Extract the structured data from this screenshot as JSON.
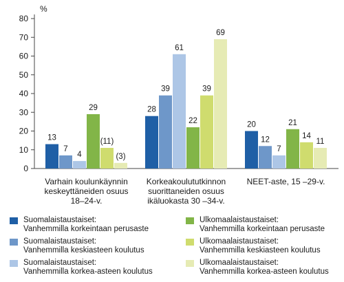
{
  "chart_data": {
    "type": "bar",
    "unit": "%",
    "ylim": [
      0,
      80
    ],
    "yticks": [
      0,
      10,
      20,
      30,
      40,
      50,
      60,
      70,
      80
    ],
    "grid": false,
    "legend_position": "bottom",
    "categories": [
      [
        "Varhain koulunkäynnin",
        "keskeyttäneiden osuus",
        "18–24-v."
      ],
      [
        "Korkeakoulututkinnon",
        "suorittaneiden osuus",
        "ikäluokasta 30 –34-v."
      ],
      [
        "NEET-aste, 15 –29-v."
      ]
    ],
    "series": [
      {
        "name": [
          "Suomalaistaustaiset:",
          "Vanhemmilla korkeintaan perusaste"
        ],
        "color": "#1f5fa6",
        "values": [
          13,
          28,
          20
        ],
        "labels": [
          "13",
          "28",
          "20"
        ]
      },
      {
        "name": [
          "Suomalaistaustaiset:",
          "Vanhemmilla keskiasteen koulutus"
        ],
        "color": "#6e97c9",
        "values": [
          7,
          39,
          12
        ],
        "labels": [
          "7",
          "39",
          "12"
        ]
      },
      {
        "name": [
          "Suomalaistaustaiset:",
          "Vanhemmilla korkea-asteen koulutus"
        ],
        "color": "#adc6e6",
        "values": [
          4,
          61,
          7
        ],
        "labels": [
          "4",
          "61",
          "7"
        ]
      },
      {
        "name": [
          "Ulkomaalaistaustaiset:",
          "Vanhemmilla korkeintaan perusaste"
        ],
        "color": "#82b548",
        "values": [
          29,
          22,
          21
        ],
        "labels": [
          "29",
          "22",
          "21"
        ]
      },
      {
        "name": [
          "Ulkomaalaistaustaiset:",
          "Vanhemmilla keskiasteen koulutus"
        ],
        "color": "#cfdc6e",
        "values": [
          11,
          39,
          14
        ],
        "labels": [
          "(11)",
          "39",
          "14"
        ]
      },
      {
        "name": [
          "Ulkomaalaistaustaiset:",
          "Vanhemmilla korkea-asteen koulutus"
        ],
        "color": "#e6ebb4",
        "values": [
          3,
          69,
          11
        ],
        "labels": [
          "(3)",
          "69",
          "11"
        ]
      }
    ]
  }
}
